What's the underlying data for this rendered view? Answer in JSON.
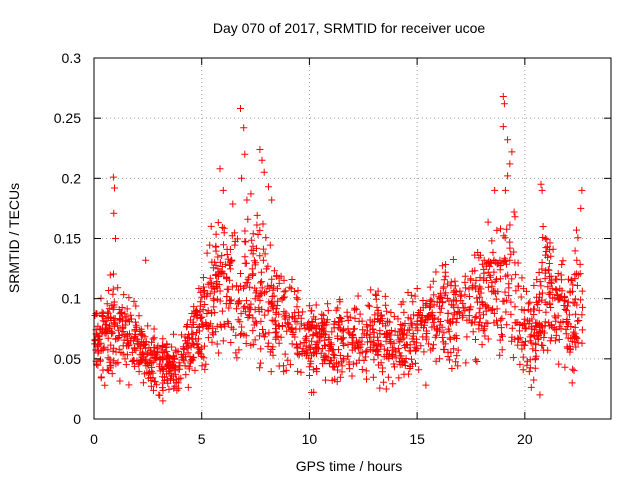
{
  "chart_data": {
    "type": "scatter",
    "title": "Day 070 of 2017, SRMTID for receiver ucoe",
    "xlabel": "GPS time / hours",
    "ylabel": "SRMTID / TECUs",
    "xlim": [
      0,
      24
    ],
    "ylim": [
      0,
      0.3
    ],
    "xticks": [
      0,
      5,
      10,
      15,
      20
    ],
    "yticks": [
      0,
      0.05,
      0.1,
      0.15,
      0.2,
      0.25,
      0.3
    ],
    "xtick_labels": [
      "0",
      "5",
      "10",
      "15",
      "20"
    ],
    "ytick_labels": [
      "0",
      "0.05",
      "0.1",
      "0.15",
      "0.2",
      "0.25",
      "0.3"
    ],
    "grid": true,
    "marker": "+",
    "color": "#ff0000",
    "x_extent": [
      0,
      22.7
    ],
    "trend": [
      [
        0.0,
        0.062
      ],
      [
        0.5,
        0.066
      ],
      [
        1.0,
        0.074
      ],
      [
        1.5,
        0.07
      ],
      [
        2.0,
        0.062
      ],
      [
        2.5,
        0.052
      ],
      [
        3.0,
        0.046
      ],
      [
        3.5,
        0.044
      ],
      [
        4.0,
        0.048
      ],
      [
        4.5,
        0.06
      ],
      [
        5.0,
        0.085
      ],
      [
        5.5,
        0.105
      ],
      [
        6.0,
        0.112
      ],
      [
        6.5,
        0.11
      ],
      [
        7.0,
        0.116
      ],
      [
        7.5,
        0.112
      ],
      [
        8.0,
        0.102
      ],
      [
        8.5,
        0.092
      ],
      [
        9.0,
        0.08
      ],
      [
        9.5,
        0.075
      ],
      [
        10.0,
        0.068
      ],
      [
        10.5,
        0.064
      ],
      [
        11.0,
        0.062
      ],
      [
        11.5,
        0.064
      ],
      [
        12.0,
        0.068
      ],
      [
        12.5,
        0.066
      ],
      [
        13.0,
        0.07
      ],
      [
        13.5,
        0.068
      ],
      [
        14.0,
        0.062
      ],
      [
        14.5,
        0.066
      ],
      [
        15.0,
        0.072
      ],
      [
        15.5,
        0.078
      ],
      [
        16.0,
        0.082
      ],
      [
        16.5,
        0.086
      ],
      [
        17.0,
        0.092
      ],
      [
        17.5,
        0.09
      ],
      [
        18.0,
        0.094
      ],
      [
        18.5,
        0.104
      ],
      [
        19.0,
        0.116
      ],
      [
        19.5,
        0.108
      ],
      [
        20.0,
        0.075
      ],
      [
        20.5,
        0.07
      ],
      [
        21.0,
        0.112
      ],
      [
        21.5,
        0.09
      ],
      [
        22.0,
        0.086
      ],
      [
        22.7,
        0.1
      ]
    ],
    "peaks": [
      {
        "x": 0.9,
        "y": 0.201
      },
      {
        "x": 0.95,
        "y": 0.192
      },
      {
        "x": 0.92,
        "y": 0.171
      },
      {
        "x": 1.0,
        "y": 0.15
      },
      {
        "x": 2.4,
        "y": 0.132
      },
      {
        "x": 5.85,
        "y": 0.208
      },
      {
        "x": 6.0,
        "y": 0.19
      },
      {
        "x": 6.8,
        "y": 0.258
      },
      {
        "x": 6.95,
        "y": 0.242
      },
      {
        "x": 7.0,
        "y": 0.22
      },
      {
        "x": 6.85,
        "y": 0.2
      },
      {
        "x": 7.1,
        "y": 0.182
      },
      {
        "x": 7.7,
        "y": 0.224
      },
      {
        "x": 7.8,
        "y": 0.215
      },
      {
        "x": 7.9,
        "y": 0.205
      },
      {
        "x": 8.1,
        "y": 0.193
      },
      {
        "x": 8.25,
        "y": 0.182
      },
      {
        "x": 18.6,
        "y": 0.19
      },
      {
        "x": 19.0,
        "y": 0.268
      },
      {
        "x": 19.05,
        "y": 0.262
      },
      {
        "x": 19.0,
        "y": 0.243
      },
      {
        "x": 19.2,
        "y": 0.232
      },
      {
        "x": 19.4,
        "y": 0.222
      },
      {
        "x": 19.3,
        "y": 0.212
      },
      {
        "x": 19.1,
        "y": 0.19
      },
      {
        "x": 19.2,
        "y": 0.202
      },
      {
        "x": 19.5,
        "y": 0.172
      },
      {
        "x": 20.75,
        "y": 0.195
      },
      {
        "x": 20.8,
        "y": 0.19
      },
      {
        "x": 20.85,
        "y": 0.16
      },
      {
        "x": 20.95,
        "y": 0.15
      },
      {
        "x": 22.65,
        "y": 0.19
      },
      {
        "x": 22.6,
        "y": 0.175
      },
      {
        "x": 22.4,
        "y": 0.157
      },
      {
        "x": 20.7,
        "y": 0.02
      },
      {
        "x": 3.2,
        "y": 0.015
      },
      {
        "x": 0.5,
        "y": 0.028
      },
      {
        "x": 10.1,
        "y": 0.022
      },
      {
        "x": 22.2,
        "y": 0.03
      }
    ]
  }
}
